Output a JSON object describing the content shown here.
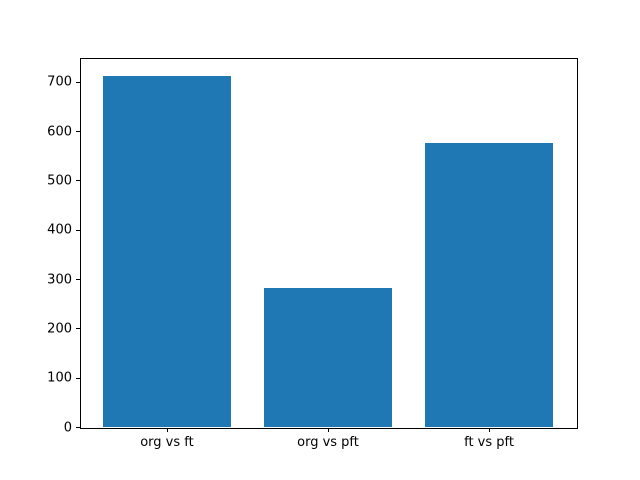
{
  "figure": {
    "background_color": "#ffffff",
    "axis_color": "#000000",
    "accent_color": "#1f77b4"
  },
  "chart_data": {
    "type": "bar",
    "categories": [
      "org vs ft",
      "org vs pft",
      "ft vs pft"
    ],
    "values": [
      712,
      281,
      575
    ],
    "title": "",
    "xlabel": "",
    "ylabel": "",
    "ylim": [
      0,
      748
    ],
    "yticks": [
      0,
      100,
      200,
      300,
      400,
      500,
      600,
      700
    ],
    "bar_color": "#1f77b4",
    "bar_width_fraction": 0.8,
    "xlim": [
      -0.54,
      2.54
    ],
    "grid": false,
    "legend": "none"
  }
}
